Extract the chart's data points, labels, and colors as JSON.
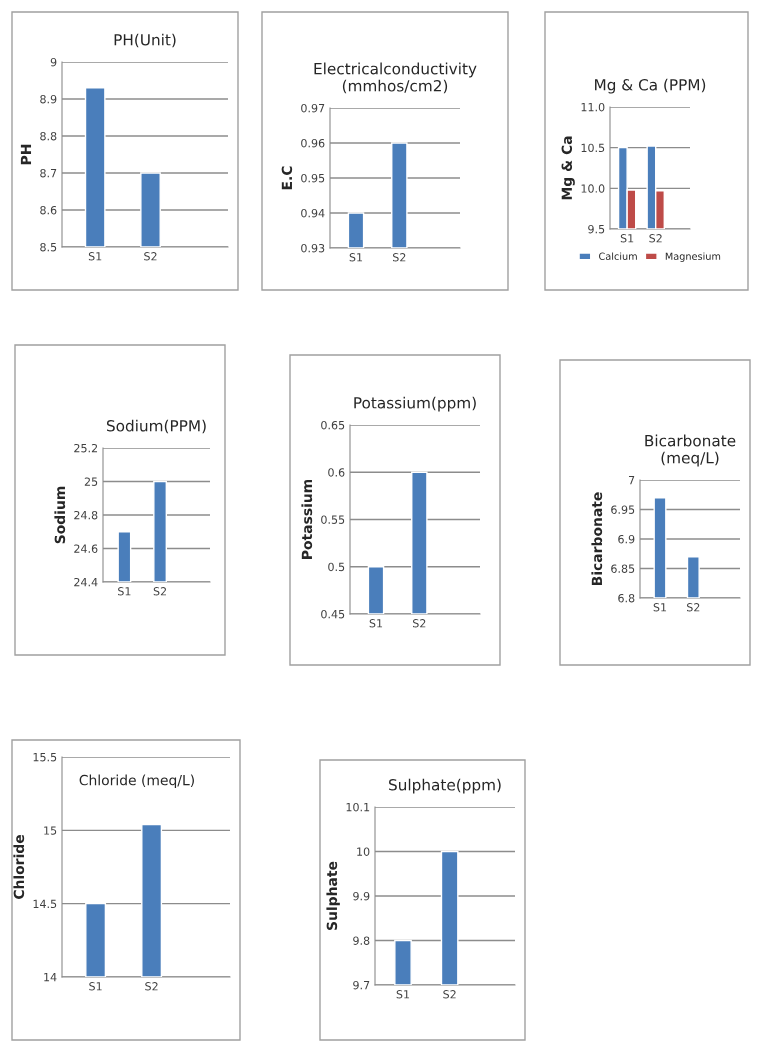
{
  "chart_data": [
    {
      "type": "bar",
      "title": "PH(Unit)",
      "ylabel": "PH",
      "categories": [
        "S1",
        "S2"
      ],
      "series": [
        {
          "color": "#4a7ebb",
          "values": [
            8.93,
            8.7
          ]
        }
      ],
      "ylim": [
        8.5,
        9
      ],
      "yticks": [
        8.5,
        8.6,
        8.7,
        8.8,
        8.9,
        9
      ],
      "grid": "y",
      "legend": false
    },
    {
      "type": "bar",
      "title": "Electricalconductivity\n(mmhos/cm2)",
      "ylabel": "E.C",
      "categories": [
        "S1",
        "S2"
      ],
      "series": [
        {
          "color": "#4a7ebb",
          "values": [
            0.94,
            0.96
          ]
        }
      ],
      "ylim": [
        0.93,
        0.97
      ],
      "yticks": [
        0.93,
        0.94,
        0.95,
        0.96,
        0.97
      ],
      "grid": "y",
      "legend": false
    },
    {
      "type": "bar",
      "title": "Mg & Ca (PPM)",
      "ylabel": "Mg & Ca",
      "categories": [
        "S1",
        "S2"
      ],
      "series": [
        {
          "name": "Calcium",
          "color": "#4a7ebb",
          "values": [
            10.5,
            10.52
          ]
        },
        {
          "name": "Magnesium",
          "color": "#be4b48",
          "values": [
            9.98,
            9.97
          ]
        }
      ],
      "ylim": [
        9.5,
        11.0
      ],
      "yticks": [
        {
          "value": 9.5,
          "label": "9.5"
        },
        {
          "value": 10.0,
          "label": "10.0"
        },
        {
          "value": 10.5,
          "label": "10.5"
        },
        {
          "value": 11.0,
          "label": "11.0"
        }
      ],
      "grid": "y",
      "legend": "bottom"
    },
    {
      "type": "bar",
      "title": "Sodium(PPM)",
      "ylabel": "Sodium",
      "categories": [
        "S1",
        "S2"
      ],
      "series": [
        {
          "color": "#4a7ebb",
          "values": [
            24.7,
            25
          ]
        }
      ],
      "ylim": [
        24.4,
        25.2
      ],
      "yticks": [
        24.4,
        24.6,
        24.8,
        25,
        25.2
      ],
      "grid": "y",
      "legend": false
    },
    {
      "type": "bar",
      "title": "Potassium(ppm)",
      "ylabel": "Potassium",
      "categories": [
        "S1",
        "S2"
      ],
      "series": [
        {
          "color": "#4a7ebb",
          "values": [
            0.5,
            0.6
          ]
        }
      ],
      "ylim": [
        0.45,
        0.65
      ],
      "yticks": [
        0.45,
        0.5,
        0.55,
        0.6,
        0.65
      ],
      "grid": "y",
      "legend": false
    },
    {
      "type": "bar",
      "title": "Bicarbonate\n(meq/L)",
      "ylabel": "Bicarbonate",
      "categories": [
        "S1",
        "S2"
      ],
      "series": [
        {
          "color": "#4a7ebb",
          "values": [
            6.97,
            6.87
          ]
        }
      ],
      "ylim": [
        6.8,
        7
      ],
      "yticks": [
        6.8,
        6.85,
        6.9,
        6.95,
        7
      ],
      "grid": "y",
      "legend": false
    },
    {
      "type": "bar",
      "title": "Chloride (meq/L)",
      "ylabel": "Chloride",
      "categories": [
        "S1",
        "S2"
      ],
      "series": [
        {
          "color": "#4a7ebb",
          "values": [
            14.5,
            15.04
          ]
        }
      ],
      "ylim": [
        14,
        15.5
      ],
      "yticks": [
        14,
        14.5,
        15,
        15.5
      ],
      "grid": "y",
      "legend": false
    },
    {
      "type": "bar",
      "title": "Sulphate(ppm)",
      "ylabel": "Sulphate",
      "categories": [
        "S1",
        "S2"
      ],
      "series": [
        {
          "color": "#4a7ebb",
          "values": [
            9.8,
            10
          ]
        }
      ],
      "ylim": [
        9.7,
        10.1
      ],
      "yticks": [
        9.7,
        9.8,
        9.9,
        10,
        10.1
      ],
      "grid": "y",
      "legend": false
    }
  ]
}
